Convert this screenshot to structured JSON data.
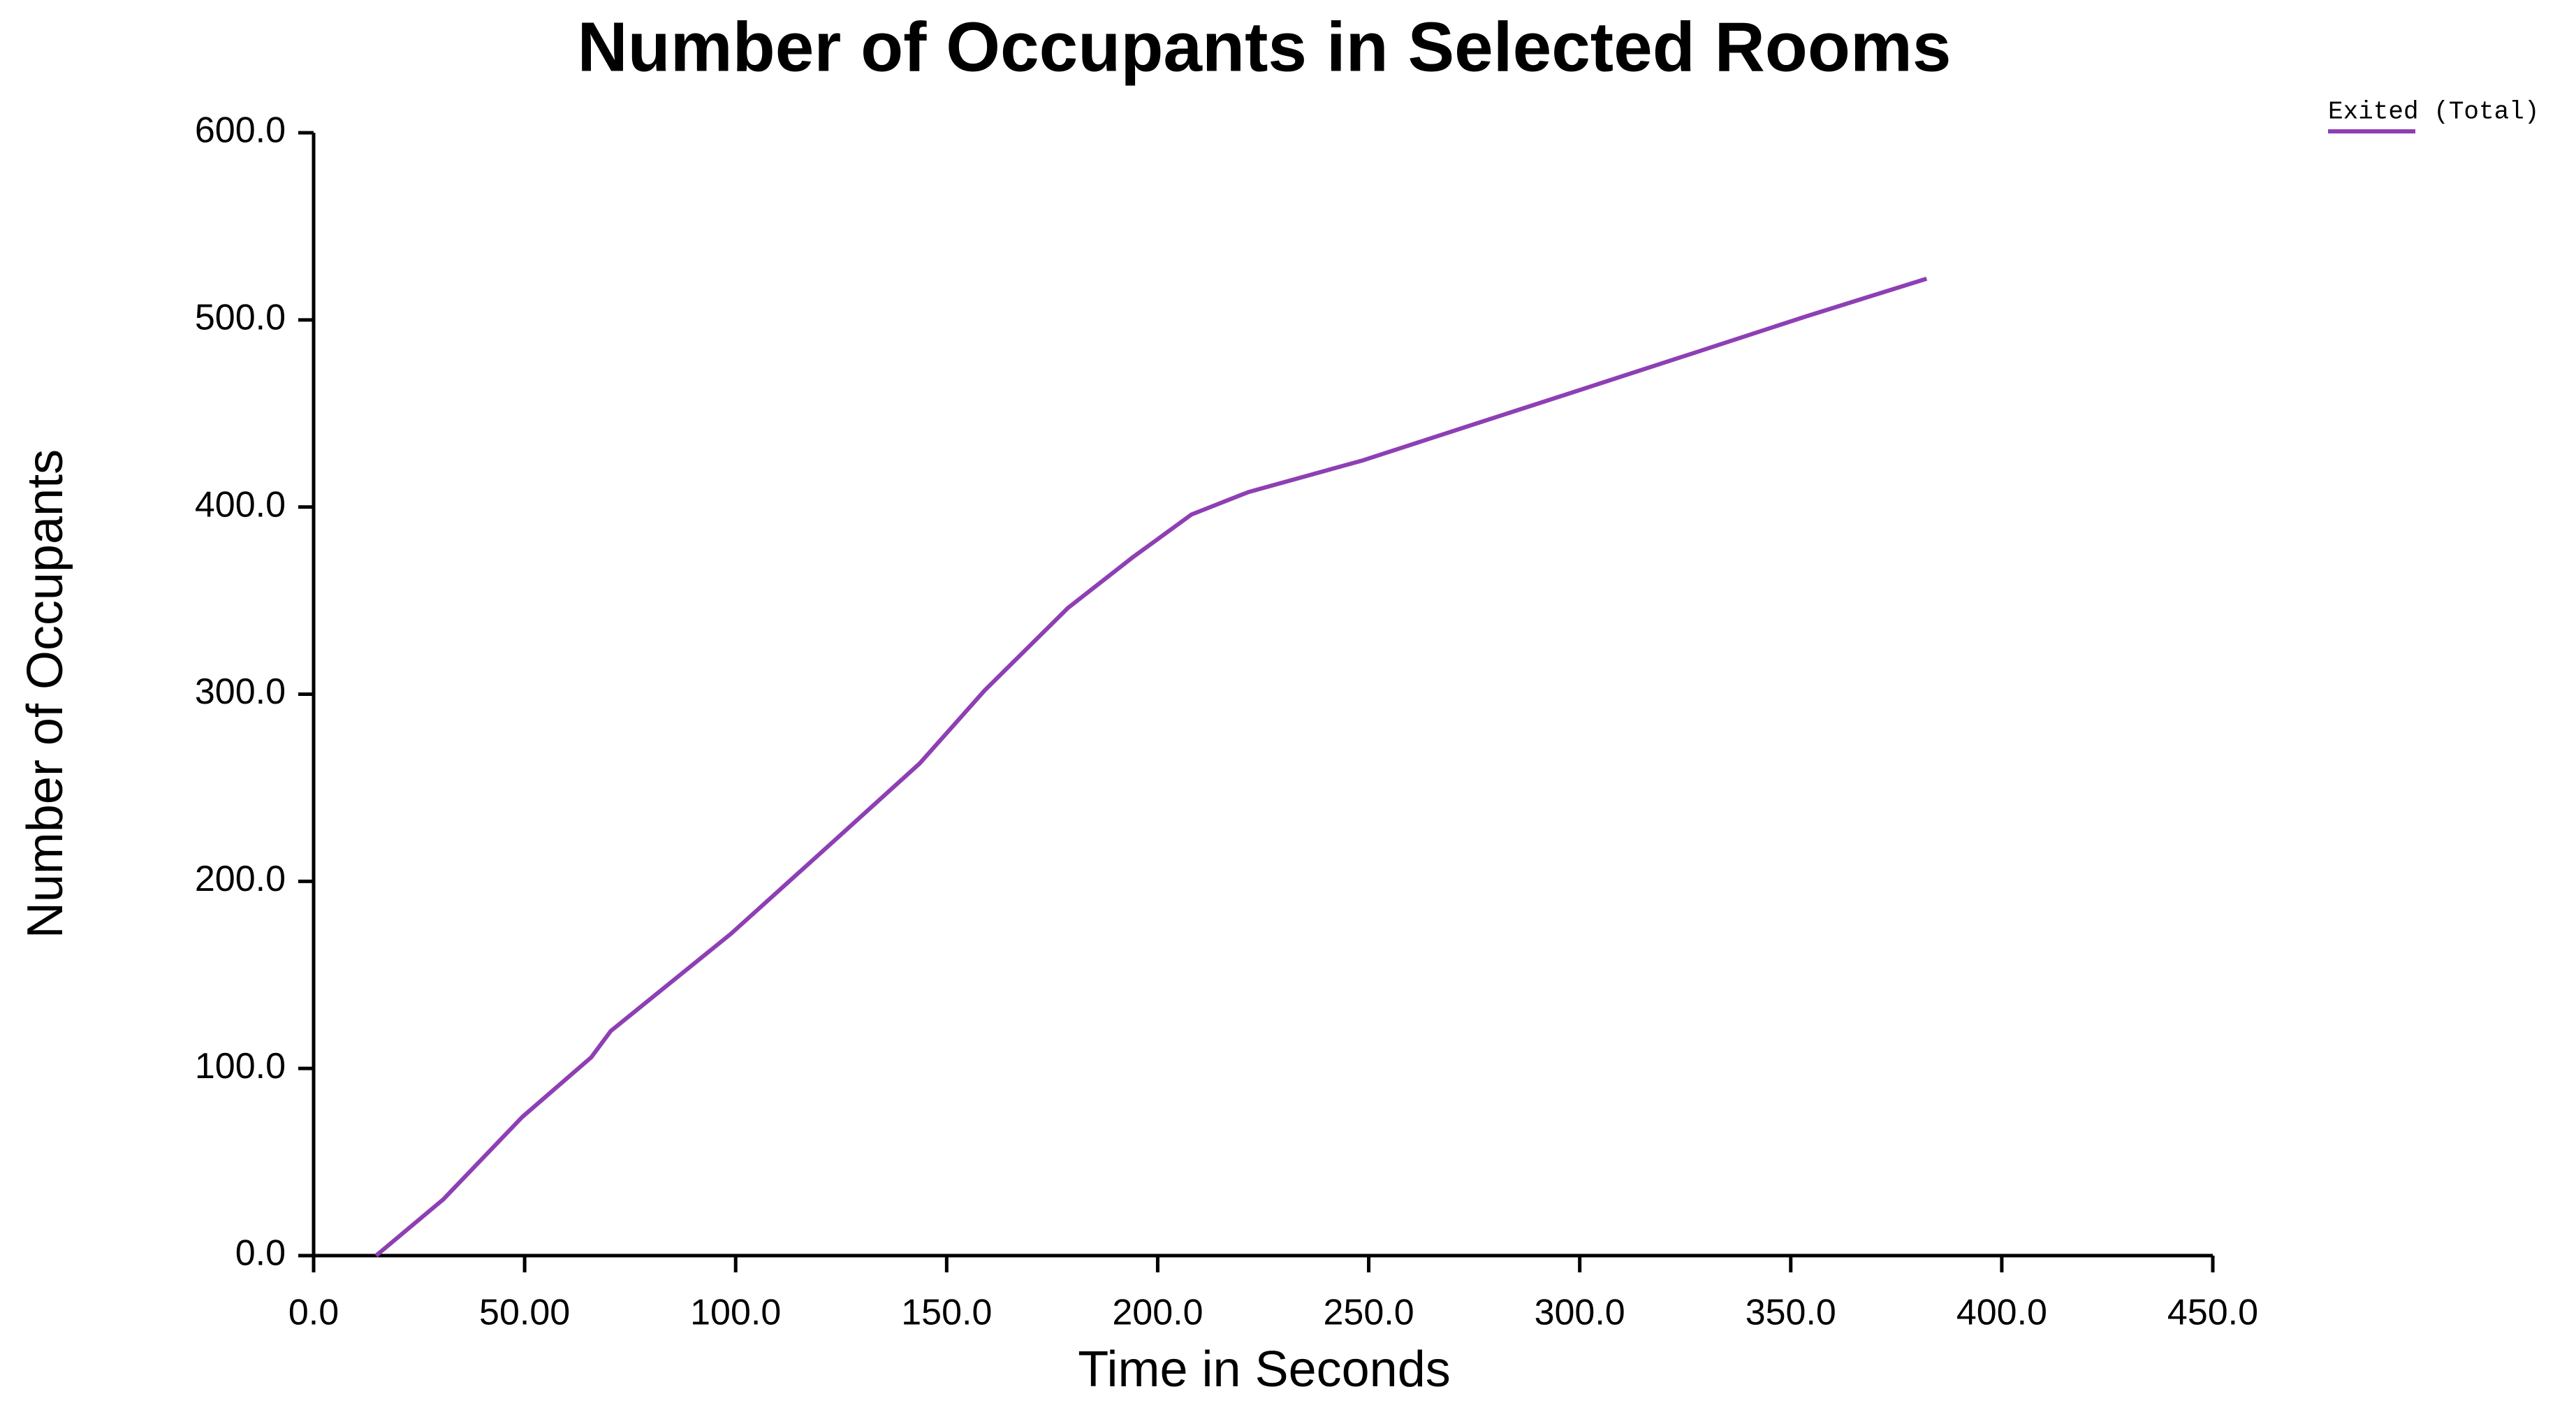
{
  "chart_data": {
    "type": "line",
    "title": "Number of Occupants in Selected Rooms",
    "x_label": "Time in Seconds",
    "y_label": "Number of Occupants",
    "x": [
      14.8,
      30.7,
      49.4,
      65.8,
      70.4,
      98.9,
      124,
      143.6,
      159,
      178.7,
      194,
      208,
      221.5,
      248.7,
      276,
      299.3,
      326.6,
      353.8,
      369.4,
      382.2
    ],
    "series": [
      {
        "name": "Exited (Total)",
        "color": "#8e3fb4",
        "values": [
          0,
          30,
          74,
          106,
          120,
          172,
          223,
          263,
          302,
          346,
          373,
          396,
          408,
          425,
          445,
          462,
          482,
          502,
          513,
          522
        ]
      }
    ],
    "xlim": [
      0,
      450
    ],
    "xticks": [
      {
        "value": 0,
        "label": "0.0"
      },
      {
        "value": 50,
        "label": "50.00"
      },
      {
        "value": 100,
        "label": "100.0"
      },
      {
        "value": 150,
        "label": "150.0"
      },
      {
        "value": 200,
        "label": "200.0"
      },
      {
        "value": 250,
        "label": "250.0"
      },
      {
        "value": 300,
        "label": "300.0"
      },
      {
        "value": 350,
        "label": "350.0"
      },
      {
        "value": 400,
        "label": "400.0"
      },
      {
        "value": 450,
        "label": "450.0"
      }
    ],
    "ylim": [
      0,
      600
    ],
    "yticks": [
      {
        "value": 0,
        "label": "0.0"
      },
      {
        "value": 100,
        "label": "100.0"
      },
      {
        "value": 200,
        "label": "200.0"
      },
      {
        "value": 300,
        "label": "300.0"
      },
      {
        "value": 400,
        "label": "400.0"
      },
      {
        "value": 500,
        "label": "500.0"
      },
      {
        "value": 600,
        "label": "600.0"
      }
    ],
    "grid": false,
    "legend": "top-right"
  }
}
